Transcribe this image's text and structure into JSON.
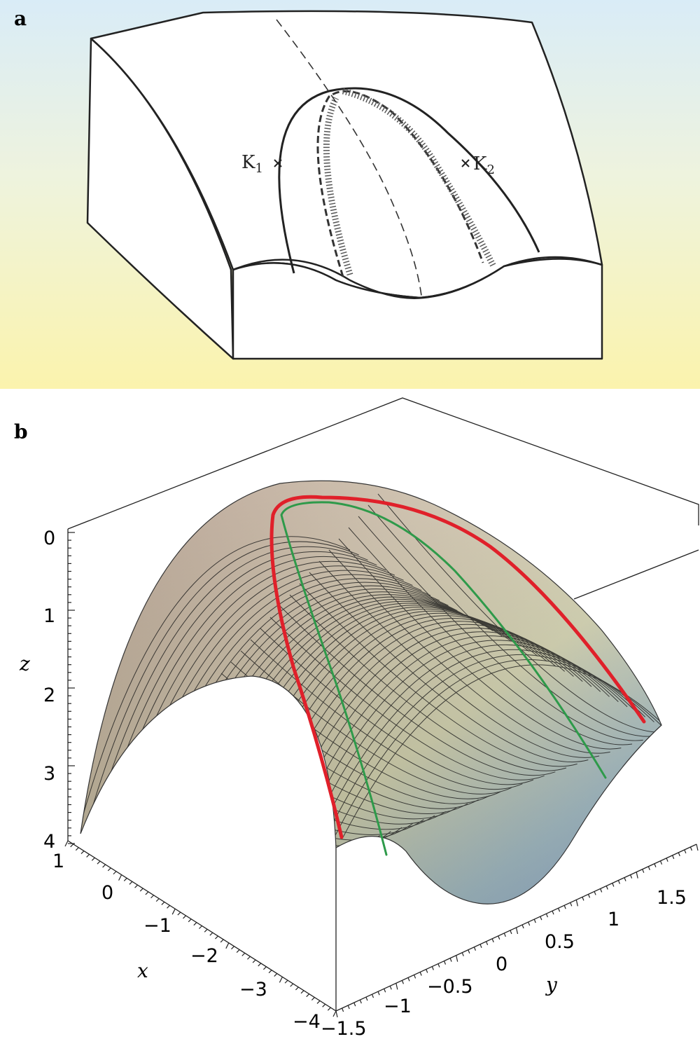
{
  "panel_a": {
    "letter": "a",
    "point_k1": "K",
    "point_k1_sub": "1",
    "point_k2": "K",
    "point_k2_sub": "2"
  },
  "panel_b": {
    "letter": "b",
    "z_axis": {
      "label": "z",
      "ticks": [
        "0",
        "1",
        "2",
        "3",
        "4"
      ]
    },
    "x_axis": {
      "label": "x",
      "ticks": [
        "1",
        "0",
        "−1",
        "−2",
        "−3",
        "−4"
      ]
    },
    "y_axis": {
      "label": "y",
      "ticks": [
        "−1.5",
        "−1",
        "−0.5",
        "0",
        "0.5",
        "1",
        "1.5"
      ]
    },
    "colors": {
      "red_curve": "#e0202a",
      "green_curve": "#2e9a4a"
    }
  }
}
